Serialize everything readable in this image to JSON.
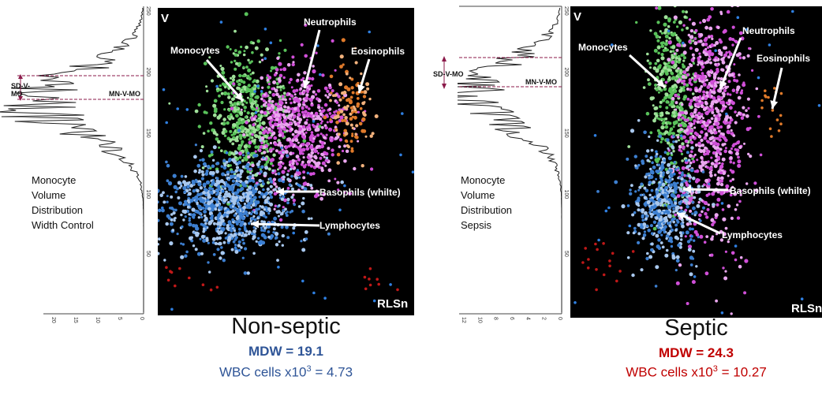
{
  "panels": {
    "left": {
      "title": "Non-septic",
      "mdw": "MDW = 19.1",
      "wbc_prefix": "WBC cells x10",
      "wbc_sup": "3",
      "wbc_suffix": " = 4.73",
      "mdw_color": "#2f5597",
      "wbc_color": "#2f5597",
      "description": [
        "Monocyte",
        "Volume",
        "Distribution",
        "Width Control"
      ],
      "sd_label_line1": "SD-V-",
      "sd_label_line2": "MO",
      "mn_label": "MN-V-MO",
      "hist_x_ticks": [
        "20",
        "15",
        "10",
        "5",
        "0"
      ],
      "hist_y_ticks": [
        "250",
        "200",
        "150",
        "100",
        "50"
      ],
      "scatter": {
        "corner": "V",
        "axis": "RLSn",
        "labels": {
          "monocytes": "Monocytes",
          "neutrophils": "Neutrophils",
          "eosinophils": "Eosinophils",
          "basophils": "Basophils (whilte)",
          "lymphocytes": "Lymphocytes"
        },
        "y_ticks": [
          "250",
          "200",
          "150",
          "100",
          "50"
        ]
      }
    },
    "right": {
      "title": "Septic",
      "mdw": "MDW = 24.3",
      "wbc_prefix": "WBC cells x10",
      "wbc_sup": "3",
      "wbc_suffix": " = 10.27",
      "mdw_color": "#c00000",
      "wbc_color": "#c00000",
      "description": [
        "Monocyte",
        "Volume",
        "Distribution",
        "Sepsis"
      ],
      "sd_label": "SD-V-MO",
      "mn_label": "MN-V-MO",
      "hist_x_ticks": [
        "12",
        "10",
        "8",
        "6",
        "4",
        "2",
        "0"
      ],
      "hist_y_ticks": [
        "250",
        "200",
        "150",
        "100",
        "50"
      ],
      "scatter": {
        "corner": "V",
        "axis": "RLSn",
        "labels": {
          "monocytes": "Monocytes",
          "neutrophils": "Neutrophils",
          "eosinophils": "Eosinophils",
          "basophils": "Basophils (whilte)",
          "lymphocytes": "Lymphocytes"
        },
        "y_ticks": [
          "250",
          "200",
          "150",
          "100",
          "50"
        ]
      }
    }
  },
  "colors": {
    "monocytes": "#59c25a",
    "neutrophils": "#d04fd8",
    "eosinophils": "#e07a2a",
    "lymphocytes": "#3d7fd0",
    "debris": "#c01818",
    "sd_marker": "#8b1a4a"
  }
}
